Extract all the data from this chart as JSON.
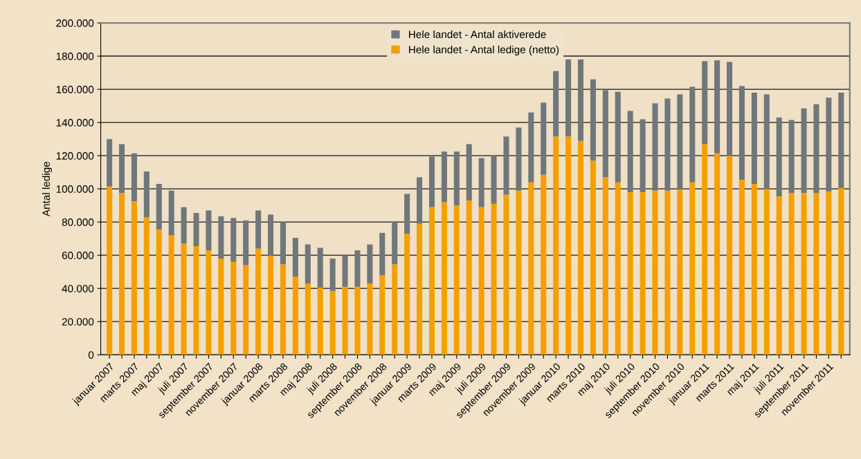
{
  "chart_data": {
    "type": "bar",
    "stacked": true,
    "ylabel": "Antal ledige",
    "categories": [
      "januar 2007",
      null,
      "marts 2007",
      null,
      "maj 2007",
      null,
      "juli 2007",
      null,
      "september 2007",
      null,
      "november 2007",
      null,
      "januar 2008",
      null,
      "marts 2008",
      null,
      "maj 2008",
      null,
      "juli 2008",
      null,
      "september 2008",
      null,
      "november 2008",
      null,
      "januar 2009",
      null,
      "marts 2009",
      null,
      "maj 2009",
      null,
      "juli 2009",
      null,
      "september 2009",
      null,
      "november 2009",
      null,
      "januar 2010",
      null,
      "marts 2010",
      null,
      "maj 2010",
      null,
      "juli 2010",
      null,
      "september 2010",
      null,
      "november 2010",
      null,
      "januar 2011",
      null,
      "marts 2011",
      null,
      "maj 2011",
      null,
      "juli 2011",
      null,
      "september 2011",
      null,
      "november 2011",
      null
    ],
    "series": [
      {
        "name": "Hele landet - Antal ledige (netto)",
        "color": "#f5a000",
        "values": [
          101500,
          97500,
          92500,
          83000,
          75500,
          72000,
          67000,
          65500,
          63000,
          58000,
          56000,
          54000,
          64000,
          59500,
          54500,
          47000,
          43000,
          40500,
          38500,
          41000,
          41000,
          43000,
          48000,
          54500,
          73000,
          79000,
          89000,
          92000,
          90000,
          93000,
          89000,
          91000,
          96500,
          99000,
          104000,
          108500,
          131500,
          131500,
          129000,
          117000,
          107000,
          104000,
          98000,
          98000,
          99000,
          99000,
          99500,
          104000,
          127000,
          121500,
          120000,
          105500,
          103000,
          100000,
          95500,
          97500,
          97500,
          97500,
          98500,
          100500
        ]
      },
      {
        "name": "Hele landet - Antal aktiverede",
        "color": "#70777b",
        "values": [
          28500,
          29500,
          29000,
          27500,
          27500,
          27000,
          22000,
          20000,
          24000,
          25500,
          26500,
          27000,
          23000,
          25000,
          25500,
          23500,
          23500,
          24000,
          19500,
          19000,
          22000,
          23500,
          25500,
          26000,
          24000,
          28000,
          30500,
          30500,
          32500,
          34000,
          29500,
          29000,
          35000,
          38000,
          42000,
          43500,
          39500,
          46500,
          49000,
          49000,
          52500,
          54500,
          49000,
          44000,
          52500,
          55500,
          57500,
          57500,
          50000,
          56000,
          56500,
          56500,
          55000,
          57000,
          47500,
          44000,
          51000,
          53500,
          56500,
          57500
        ]
      }
    ],
    "ylim": [
      0,
      200000
    ],
    "yticks": [
      {
        "value": 0,
        "label": "0"
      },
      {
        "value": 20000,
        "label": "20.000"
      },
      {
        "value": 40000,
        "label": "40.000"
      },
      {
        "value": 60000,
        "label": "60.000"
      },
      {
        "value": 80000,
        "label": "80.000"
      },
      {
        "value": 100000,
        "label": "100.000"
      },
      {
        "value": 120000,
        "label": "120.000"
      },
      {
        "value": 140000,
        "label": "140.000"
      },
      {
        "value": 160000,
        "label": "160.000"
      },
      {
        "value": 180000,
        "label": "180.000"
      },
      {
        "value": 200000,
        "label": "200.000"
      }
    ],
    "grid": "y",
    "legend": "top"
  }
}
